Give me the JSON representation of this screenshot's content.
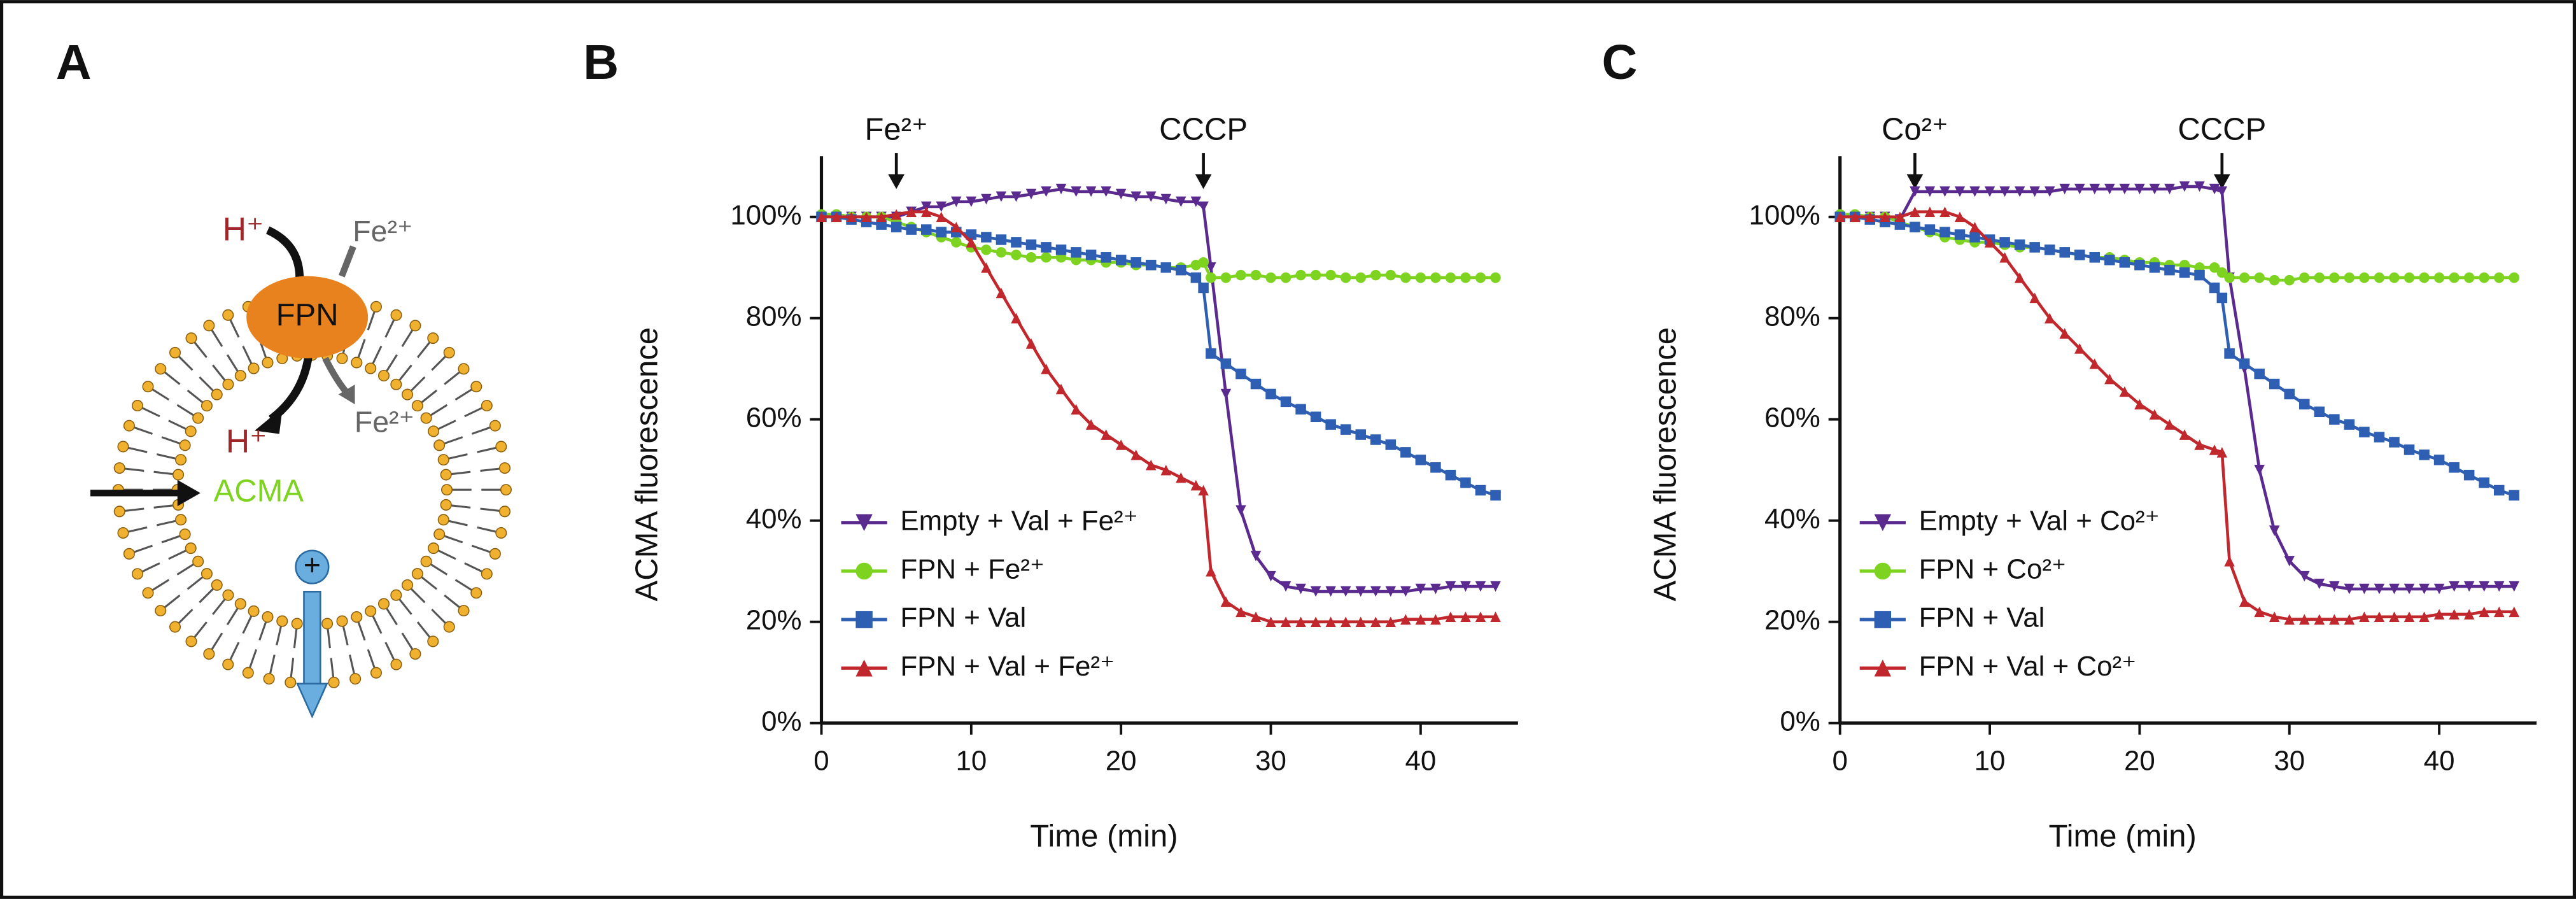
{
  "diagram": {
    "panel": "A",
    "h_out": "H⁺",
    "fe_out": "Fe²⁺",
    "transporter": "FPN",
    "h_in": "H⁺",
    "fe_in": "Fe²⁺",
    "dye": "ACMA",
    "charge": "+"
  },
  "chart_data": [
    {
      "type": "line",
      "panel": "B",
      "x_label": "Time (min)",
      "y_label": "ACMA fluorescence",
      "x": [
        0,
        1,
        2,
        3,
        4,
        5,
        6,
        7,
        8,
        9,
        10,
        11,
        12,
        13,
        14,
        15,
        16,
        17,
        18,
        19,
        20,
        21,
        22,
        23,
        24,
        25,
        25.5,
        26,
        27,
        28,
        29,
        30,
        31,
        32,
        33,
        34,
        35,
        36,
        37,
        38,
        39,
        40,
        41,
        42,
        43,
        44,
        45
      ],
      "xlim": [
        0,
        46.5
      ],
      "xticks": [
        0,
        10,
        20,
        30,
        40
      ],
      "ylim": [
        0,
        112
      ],
      "yticks": [
        {
          "value": 0,
          "label": "0%"
        },
        {
          "value": 20,
          "label": "20%"
        },
        {
          "value": 40,
          "label": "40%"
        },
        {
          "value": 60,
          "label": "60%"
        },
        {
          "value": 80,
          "label": "80%"
        },
        {
          "value": 100,
          "label": "100%"
        }
      ],
      "legend": "lower-left",
      "annotations": [
        {
          "label": "Fe²⁺",
          "x": 5
        },
        {
          "label": "CCCP",
          "x": 25.5
        }
      ],
      "series": [
        {
          "name": "Empty + Val + Fe²⁺",
          "color": "#5b2a8f",
          "marker": "triangle-down",
          "values": [
            100,
            100,
            100,
            100,
            100,
            100,
            101,
            102,
            102,
            103,
            103,
            103.5,
            104,
            104,
            104.5,
            105,
            105.5,
            105,
            105,
            105,
            104.5,
            104,
            104,
            103.5,
            103,
            103,
            102,
            90,
            65,
            42,
            33,
            29,
            27,
            26.5,
            26,
            26,
            26,
            26,
            26,
            26,
            26,
            26.5,
            26.5,
            27,
            27,
            27,
            27
          ]
        },
        {
          "name": "FPN + Fe²⁺",
          "color": "#7ed321",
          "marker": "circle",
          "values": [
            100.5,
            100.5,
            100,
            100,
            100,
            99,
            98,
            97,
            96,
            95,
            94,
            93.5,
            93,
            92.5,
            92,
            92,
            92,
            91.5,
            91.5,
            91,
            91,
            90.5,
            90.5,
            90,
            90,
            90.5,
            91,
            88,
            88,
            88.5,
            88.5,
            88,
            88,
            88.5,
            88.5,
            88.5,
            88,
            88,
            88.5,
            88.5,
            88,
            88,
            88,
            88,
            88,
            88,
            88
          ]
        },
        {
          "name": "FPN + Val",
          "color": "#2f5fb3",
          "marker": "square",
          "values": [
            100,
            100,
            99.5,
            99,
            98.5,
            98,
            97.5,
            97.5,
            97,
            97,
            96.5,
            96,
            95.5,
            95,
            94.5,
            94,
            93.5,
            93,
            92.5,
            92,
            91.5,
            91,
            90.5,
            90,
            89.5,
            88,
            86,
            73,
            71,
            69,
            67,
            65,
            63.5,
            62,
            60.5,
            59,
            58,
            57,
            56,
            55,
            53.5,
            52,
            50.5,
            49,
            47.5,
            46,
            45
          ]
        },
        {
          "name": "FPN + Val + Fe²⁺",
          "color": "#c0282d",
          "marker": "triangle-up",
          "values": [
            100,
            100,
            100,
            100,
            100,
            100.5,
            101,
            101,
            100,
            98,
            95,
            90,
            85,
            80,
            75,
            70,
            66,
            62,
            59,
            57,
            55,
            53,
            51,
            50,
            48.5,
            47,
            46,
            30,
            24,
            22,
            21,
            20,
            20,
            20,
            20,
            20,
            20,
            20,
            20,
            20,
            20.5,
            20.5,
            20.5,
            21,
            21,
            21,
            21
          ]
        }
      ]
    },
    {
      "type": "line",
      "panel": "C",
      "x_label": "Time (min)",
      "y_label": "ACMA fluorescence",
      "x": [
        0,
        1,
        2,
        3,
        4,
        5,
        6,
        7,
        8,
        9,
        10,
        11,
        12,
        13,
        14,
        15,
        16,
        17,
        18,
        19,
        20,
        21,
        22,
        23,
        24,
        25,
        25.5,
        26,
        27,
        28,
        29,
        30,
        31,
        32,
        33,
        34,
        35,
        36,
        37,
        38,
        39,
        40,
        41,
        42,
        43,
        44,
        45
      ],
      "xlim": [
        0,
        46.5
      ],
      "xticks": [
        0,
        10,
        20,
        30,
        40
      ],
      "ylim": [
        0,
        112
      ],
      "yticks": [
        {
          "value": 0,
          "label": "0%"
        },
        {
          "value": 20,
          "label": "20%"
        },
        {
          "value": 40,
          "label": "40%"
        },
        {
          "value": 60,
          "label": "60%"
        },
        {
          "value": 80,
          "label": "80%"
        },
        {
          "value": 100,
          "label": "100%"
        }
      ],
      "legend": "lower-left",
      "annotations": [
        {
          "label": "Co²⁺",
          "x": 5
        },
        {
          "label": "CCCP",
          "x": 25.5
        }
      ],
      "series": [
        {
          "name": "Empty + Val + Co²⁺",
          "color": "#5b2a8f",
          "marker": "triangle-down",
          "values": [
            100,
            100,
            100,
            100,
            99.5,
            105,
            105,
            105,
            105,
            105,
            105,
            105,
            105,
            105,
            105,
            105.5,
            105.5,
            105.5,
            105.5,
            105.5,
            105.5,
            105.5,
            105.5,
            106,
            106,
            105.5,
            105,
            88,
            70,
            50,
            38,
            32,
            29,
            27.5,
            27,
            26.5,
            26.5,
            26.5,
            26.5,
            26.5,
            26.5,
            26.5,
            27,
            27,
            27,
            27,
            27
          ]
        },
        {
          "name": "FPN + Co²⁺",
          "color": "#7ed321",
          "marker": "circle",
          "values": [
            100.5,
            100.5,
            100,
            100,
            99,
            98,
            97,
            96,
            95.5,
            95,
            95,
            94.5,
            94,
            94,
            93.5,
            93,
            92.5,
            92,
            92,
            91.5,
            91,
            91,
            90.5,
            90.5,
            90,
            90,
            89,
            88,
            88,
            88,
            87.5,
            87.5,
            88,
            88,
            88,
            88,
            88,
            88,
            88,
            88,
            88,
            88,
            88,
            88,
            88,
            88,
            88
          ]
        },
        {
          "name": "FPN + Val",
          "color": "#2f5fb3",
          "marker": "square",
          "values": [
            100,
            100,
            99.5,
            99,
            98.5,
            98,
            97.5,
            97,
            96.5,
            96,
            95.5,
            95,
            94.5,
            94,
            93.5,
            93,
            92.5,
            92,
            91.5,
            91,
            90.5,
            90,
            89.5,
            89,
            88.5,
            86,
            84,
            73,
            71,
            69,
            67,
            65,
            63,
            61.5,
            60,
            59,
            57.5,
            56.5,
            55.5,
            54,
            53,
            52,
            50.5,
            49,
            47.5,
            46,
            45
          ]
        },
        {
          "name": "FPN + Val + Co²⁺",
          "color": "#c0282d",
          "marker": "triangle-up",
          "values": [
            100,
            100,
            100,
            100,
            100,
            101,
            101,
            101,
            100,
            98,
            95,
            92,
            88,
            84,
            80,
            77,
            74,
            71,
            68,
            65.5,
            63,
            61,
            59,
            57,
            55,
            54,
            53.5,
            32,
            24,
            22,
            21,
            20.5,
            20.5,
            20.5,
            20.5,
            20.5,
            21,
            21,
            21,
            21,
            21,
            21.5,
            21.5,
            21.5,
            22,
            22,
            22
          ]
        }
      ]
    }
  ]
}
